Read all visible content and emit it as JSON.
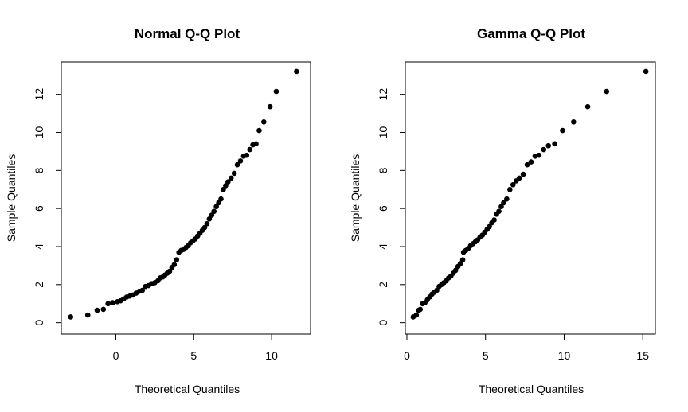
{
  "chart_data": [
    {
      "type": "scatter",
      "title": "Normal Q-Q Plot",
      "xlabel": "Theoretical Quantiles",
      "ylabel": "Sample Quantiles",
      "xlim": [
        -3.5,
        12.5
      ],
      "ylim": [
        -0.6,
        13.7
      ],
      "xticks": [
        0,
        5,
        10
      ],
      "yticks": [
        0,
        2,
        4,
        6,
        8,
        10,
        12
      ],
      "grid": false,
      "marker_color": "#000000",
      "points": [
        [
          -2.9,
          0.3
        ],
        [
          -1.8,
          0.4
        ],
        [
          -1.2,
          0.65
        ],
        [
          -0.8,
          0.7
        ],
        [
          -0.5,
          1.0
        ],
        [
          -0.2,
          1.05
        ],
        [
          0.1,
          1.1
        ],
        [
          0.3,
          1.15
        ],
        [
          0.5,
          1.25
        ],
        [
          0.7,
          1.35
        ],
        [
          0.9,
          1.4
        ],
        [
          1.1,
          1.45
        ],
        [
          1.3,
          1.55
        ],
        [
          1.5,
          1.65
        ],
        [
          1.7,
          1.7
        ],
        [
          1.9,
          1.9
        ],
        [
          2.1,
          1.95
        ],
        [
          2.3,
          2.05
        ],
        [
          2.5,
          2.1
        ],
        [
          2.7,
          2.2
        ],
        [
          2.85,
          2.35
        ],
        [
          3.0,
          2.4
        ],
        [
          3.15,
          2.5
        ],
        [
          3.3,
          2.6
        ],
        [
          3.45,
          2.7
        ],
        [
          3.6,
          2.9
        ],
        [
          3.75,
          3.05
        ],
        [
          3.9,
          3.3
        ],
        [
          4.05,
          3.7
        ],
        [
          4.2,
          3.8
        ],
        [
          4.35,
          3.85
        ],
        [
          4.5,
          3.95
        ],
        [
          4.65,
          4.05
        ],
        [
          4.8,
          4.2
        ],
        [
          4.95,
          4.3
        ],
        [
          5.1,
          4.4
        ],
        [
          5.25,
          4.55
        ],
        [
          5.4,
          4.7
        ],
        [
          5.55,
          4.85
        ],
        [
          5.7,
          5.0
        ],
        [
          5.85,
          5.2
        ],
        [
          6.0,
          5.45
        ],
        [
          6.15,
          5.65
        ],
        [
          6.3,
          5.85
        ],
        [
          6.45,
          6.1
        ],
        [
          6.6,
          6.3
        ],
        [
          6.75,
          6.5
        ],
        [
          6.9,
          7.0
        ],
        [
          7.05,
          7.2
        ],
        [
          7.2,
          7.4
        ],
        [
          7.4,
          7.6
        ],
        [
          7.6,
          7.85
        ],
        [
          7.8,
          8.3
        ],
        [
          8.0,
          8.5
        ],
        [
          8.2,
          8.75
        ],
        [
          8.4,
          8.8
        ],
        [
          8.6,
          9.1
        ],
        [
          8.8,
          9.35
        ],
        [
          9.0,
          9.4
        ],
        [
          9.2,
          10.1
        ],
        [
          9.5,
          10.55
        ],
        [
          9.9,
          11.35
        ],
        [
          10.3,
          12.15
        ],
        [
          11.6,
          13.2
        ]
      ]
    },
    {
      "type": "scatter",
      "title": "Gamma Q-Q Plot",
      "xlabel": "Theoretical Quantiles",
      "ylabel": "Sample Quantiles",
      "xlim": [
        -0.1,
        15.8
      ],
      "ylim": [
        -0.6,
        13.7
      ],
      "xticks": [
        0,
        5,
        10,
        15
      ],
      "yticks": [
        0,
        2,
        4,
        6,
        8,
        10,
        12
      ],
      "grid": false,
      "marker_color": "#000000",
      "points": [
        [
          0.4,
          0.3
        ],
        [
          0.6,
          0.4
        ],
        [
          0.75,
          0.65
        ],
        [
          0.85,
          0.7
        ],
        [
          1.0,
          1.0
        ],
        [
          1.15,
          1.05
        ],
        [
          1.3,
          1.2
        ],
        [
          1.45,
          1.35
        ],
        [
          1.6,
          1.5
        ],
        [
          1.75,
          1.6
        ],
        [
          1.9,
          1.7
        ],
        [
          2.05,
          1.9
        ],
        [
          2.2,
          2.0
        ],
        [
          2.35,
          2.1
        ],
        [
          2.5,
          2.2
        ],
        [
          2.65,
          2.35
        ],
        [
          2.8,
          2.45
        ],
        [
          2.95,
          2.6
        ],
        [
          3.1,
          2.75
        ],
        [
          3.25,
          2.95
        ],
        [
          3.4,
          3.1
        ],
        [
          3.55,
          3.3
        ],
        [
          3.6,
          3.7
        ],
        [
          3.75,
          3.8
        ],
        [
          3.9,
          3.9
        ],
        [
          4.05,
          4.05
        ],
        [
          4.2,
          4.15
        ],
        [
          4.35,
          4.25
        ],
        [
          4.5,
          4.35
        ],
        [
          4.65,
          4.5
        ],
        [
          4.8,
          4.6
        ],
        [
          4.95,
          4.75
        ],
        [
          5.1,
          4.9
        ],
        [
          5.25,
          5.05
        ],
        [
          5.4,
          5.25
        ],
        [
          5.55,
          5.4
        ],
        [
          5.7,
          5.7
        ],
        [
          5.85,
          5.85
        ],
        [
          6.0,
          6.1
        ],
        [
          6.15,
          6.3
        ],
        [
          6.35,
          6.5
        ],
        [
          6.55,
          7.0
        ],
        [
          6.75,
          7.25
        ],
        [
          6.95,
          7.45
        ],
        [
          7.15,
          7.6
        ],
        [
          7.4,
          7.8
        ],
        [
          7.65,
          8.3
        ],
        [
          7.9,
          8.45
        ],
        [
          8.15,
          8.75
        ],
        [
          8.4,
          8.8
        ],
        [
          8.7,
          9.1
        ],
        [
          9.0,
          9.3
        ],
        [
          9.4,
          9.4
        ],
        [
          9.9,
          10.1
        ],
        [
          10.6,
          10.55
        ],
        [
          11.5,
          11.35
        ],
        [
          12.7,
          12.15
        ],
        [
          15.2,
          13.2
        ]
      ]
    }
  ]
}
